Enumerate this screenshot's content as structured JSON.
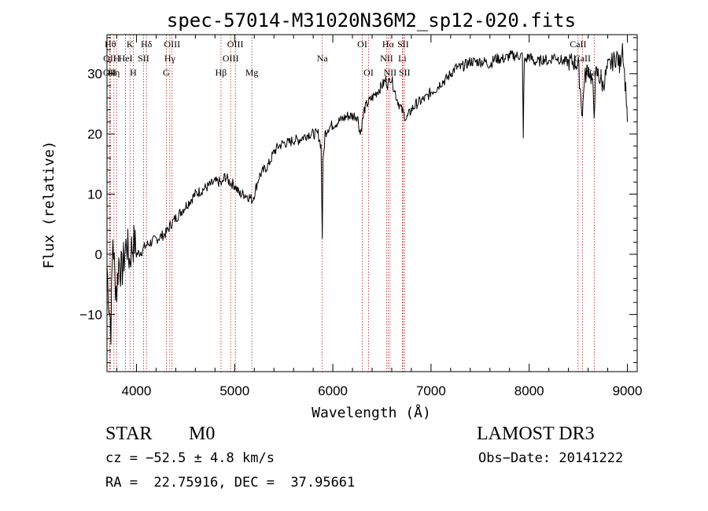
{
  "chart_data": {
    "type": "line",
    "title": "spec-57014-M31020N36M2_sp12-020.fits",
    "xlabel": "Wavelength (Å)",
    "ylabel": "Flux (relative)",
    "xlim": [
      3700,
      9100
    ],
    "ylim": [
      -19.5,
      36.5
    ],
    "x_ticks": [
      4000,
      5000,
      6000,
      7000,
      8000,
      9000
    ],
    "y_ticks": [
      -10,
      0,
      10,
      20,
      30
    ],
    "grid": false,
    "colors": {
      "spectrum": "#000000",
      "lines": "#b22222"
    },
    "series": [
      {
        "points": [
          [
            3700,
            -2
          ],
          [
            3720,
            -8
          ],
          [
            3740,
            -12
          ],
          [
            3760,
            3
          ],
          [
            3780,
            -4
          ],
          [
            3800,
            -6
          ],
          [
            3820,
            -1
          ],
          [
            3850,
            -3
          ],
          [
            3880,
            0
          ],
          [
            3900,
            2
          ],
          [
            3930,
            -1
          ],
          [
            3950,
            1
          ],
          [
            3980,
            2
          ],
          [
            4000,
            0
          ],
          [
            4050,
            0.5
          ],
          [
            4100,
            1.5
          ],
          [
            4150,
            2
          ],
          [
            4200,
            2.5
          ],
          [
            4250,
            3
          ],
          [
            4300,
            3.5
          ],
          [
            4350,
            5
          ],
          [
            4400,
            6
          ],
          [
            4450,
            7
          ],
          [
            4500,
            8
          ],
          [
            4550,
            9
          ],
          [
            4600,
            10
          ],
          [
            4650,
            10.5
          ],
          [
            4700,
            11
          ],
          [
            4750,
            11.5
          ],
          [
            4800,
            12
          ],
          [
            4850,
            12
          ],
          [
            4870,
            11.5
          ],
          [
            4900,
            13
          ],
          [
            4950,
            12
          ],
          [
            5000,
            11.5
          ],
          [
            5050,
            10
          ],
          [
            5100,
            10
          ],
          [
            5150,
            9.5
          ],
          [
            5180,
            9
          ],
          [
            5200,
            10
          ],
          [
            5250,
            13
          ],
          [
            5300,
            14
          ],
          [
            5350,
            15
          ],
          [
            5400,
            17
          ],
          [
            5450,
            18
          ],
          [
            5500,
            18.5
          ],
          [
            5550,
            18.5
          ],
          [
            5600,
            19
          ],
          [
            5650,
            19
          ],
          [
            5700,
            19.5
          ],
          [
            5750,
            20
          ],
          [
            5800,
            20
          ],
          [
            5850,
            20
          ],
          [
            5880,
            18
          ],
          [
            5893,
            3
          ],
          [
            5900,
            15
          ],
          [
            5920,
            20
          ],
          [
            5950,
            21
          ],
          [
            6000,
            21.5
          ],
          [
            6050,
            22
          ],
          [
            6100,
            22.5
          ],
          [
            6150,
            23
          ],
          [
            6200,
            23
          ],
          [
            6250,
            23
          ],
          [
            6280,
            20
          ],
          [
            6300,
            22
          ],
          [
            6320,
            24
          ],
          [
            6350,
            25
          ],
          [
            6400,
            26
          ],
          [
            6450,
            27
          ],
          [
            6500,
            28
          ],
          [
            6540,
            29
          ],
          [
            6563,
            28
          ],
          [
            6580,
            29.5
          ],
          [
            6600,
            29
          ],
          [
            6650,
            26
          ],
          [
            6700,
            24
          ],
          [
            6750,
            22.5
          ],
          [
            6800,
            24
          ],
          [
            6850,
            25
          ],
          [
            6900,
            25.5
          ],
          [
            6950,
            26
          ],
          [
            7000,
            27
          ],
          [
            7050,
            27.5
          ],
          [
            7100,
            28.5
          ],
          [
            7150,
            29
          ],
          [
            7200,
            30
          ],
          [
            7250,
            31
          ],
          [
            7300,
            31
          ],
          [
            7350,
            31.5
          ],
          [
            7400,
            32
          ],
          [
            7450,
            32
          ],
          [
            7500,
            32
          ],
          [
            7550,
            32
          ],
          [
            7600,
            31.5
          ],
          [
            7650,
            32.5
          ],
          [
            7700,
            32.5
          ],
          [
            7750,
            32.5
          ],
          [
            7800,
            33
          ],
          [
            7850,
            33
          ],
          [
            7900,
            33
          ],
          [
            7930,
            33
          ],
          [
            7940,
            20
          ],
          [
            7950,
            32
          ],
          [
            8000,
            33
          ],
          [
            8050,
            32
          ],
          [
            8100,
            32
          ],
          [
            8150,
            32.5
          ],
          [
            8200,
            32
          ],
          [
            8250,
            33
          ],
          [
            8300,
            32.5
          ],
          [
            8350,
            32
          ],
          [
            8400,
            32
          ],
          [
            8450,
            32
          ],
          [
            8500,
            31.5
          ],
          [
            8542,
            23
          ],
          [
            8560,
            29
          ],
          [
            8600,
            31
          ],
          [
            8640,
            29
          ],
          [
            8662,
            24
          ],
          [
            8680,
            30
          ],
          [
            8700,
            30
          ],
          [
            8750,
            28
          ],
          [
            8800,
            31
          ],
          [
            8850,
            32
          ],
          [
            8900,
            33
          ],
          [
            8920,
            31
          ],
          [
            8950,
            35
          ],
          [
            8970,
            30
          ],
          [
            8990,
            26
          ],
          [
            9000,
            22
          ]
        ]
      }
    ],
    "spectral_lines": [
      {
        "wavelength": 3734,
        "label": "Hθ",
        "tier": 0
      },
      {
        "wavelength": 3728,
        "label": "OII",
        "tier": 1
      },
      {
        "wavelength": 3727,
        "label": "OII",
        "tier": 2
      },
      {
        "wavelength": 3771,
        "label": "Hη",
        "tier": 2
      },
      {
        "wavelength": 3798,
        "label": "H",
        "tier": 1
      },
      {
        "wavelength": 3934,
        "label": "K",
        "tier": 0
      },
      {
        "wavelength": 3889,
        "label": "HeI",
        "tier": 1
      },
      {
        "wavelength": 3968,
        "label": "H",
        "tier": 2
      },
      {
        "wavelength": 4102,
        "label": "Hδ",
        "tier": 0
      },
      {
        "wavelength": 4072,
        "label": "SII",
        "tier": 1
      },
      {
        "wavelength": 4340,
        "label": "Hγ",
        "tier": 1
      },
      {
        "wavelength": 4363,
        "label": "OIII",
        "tier": 0
      },
      {
        "wavelength": 4304,
        "label": "G",
        "tier": 2
      },
      {
        "wavelength": 4861,
        "label": "Hβ",
        "tier": 2
      },
      {
        "wavelength": 4959,
        "label": "OIII",
        "tier": 1
      },
      {
        "wavelength": 5007,
        "label": "OIII",
        "tier": 0
      },
      {
        "wavelength": 5175,
        "label": "Mg",
        "tier": 2
      },
      {
        "wavelength": 5893,
        "label": "Na",
        "tier": 1
      },
      {
        "wavelength": 6300,
        "label": "OI",
        "tier": 0
      },
      {
        "wavelength": 6364,
        "label": "OI",
        "tier": 2
      },
      {
        "wavelength": 6563,
        "label": "Hα",
        "tier": 0
      },
      {
        "wavelength": 6548,
        "label": "NII",
        "tier": 1
      },
      {
        "wavelength": 6583,
        "label": "NII",
        "tier": 2
      },
      {
        "wavelength": 6716,
        "label": "SII",
        "tier": 0
      },
      {
        "wavelength": 6708,
        "label": "Li",
        "tier": 1
      },
      {
        "wavelength": 6731,
        "label": "SII",
        "tier": 2
      },
      {
        "wavelength": 8498,
        "label": "CaII",
        "tier": 0
      },
      {
        "wavelength": 8542,
        "label": "CaII",
        "tier": 1
      },
      {
        "wavelength": 8662,
        "label": "CaII",
        "tier": 2
      }
    ]
  },
  "info": {
    "class": "STAR",
    "subclass": "M0",
    "survey": "LAMOST DR3",
    "cz": "cz = −52.5 ± 4.8 km/s",
    "obs_date": "Obs−Date: 20141222",
    "coords": "RA =  22.75916, DEC =  37.95661"
  }
}
